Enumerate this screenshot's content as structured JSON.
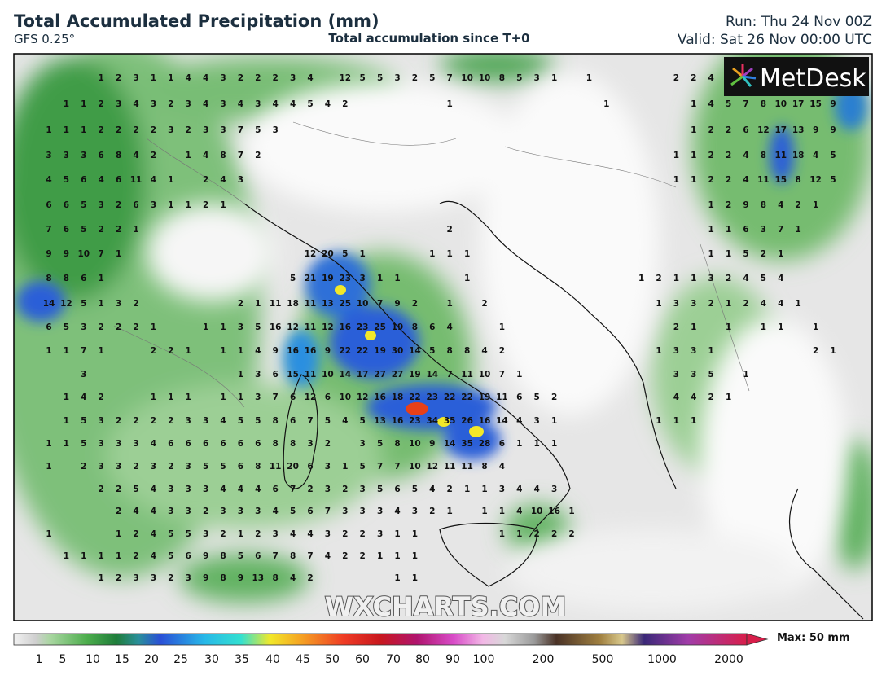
{
  "header": {
    "title": "Total Accumulated Precipitation (mm)",
    "model": "GFS 0.25°",
    "subtitle": "Total accumulation since T+0",
    "run": "Run: Thu 24 Nov 00Z",
    "valid": "Valid: Sat 26 Nov 00:00 UTC"
  },
  "logo": "MetDesk",
  "watermark": "WXCHARTS.COM",
  "grid": {
    "rows": [
      [
        null,
        null,
        null,
        1,
        2,
        3,
        1,
        1,
        4,
        4,
        3,
        2,
        2,
        2,
        3,
        4,
        null,
        12,
        5,
        5,
        3,
        2,
        5,
        7,
        10,
        10,
        8,
        5,
        3,
        1,
        null,
        1,
        null,
        null,
        null,
        null,
        2,
        2,
        4,
        null,
        null,
        null,
        null,
        null,
        null,
        null
      ],
      [
        null,
        1,
        1,
        2,
        3,
        4,
        3,
        2,
        3,
        4,
        3,
        4,
        3,
        4,
        4,
        5,
        4,
        2,
        null,
        null,
        null,
        null,
        null,
        1,
        null,
        null,
        null,
        null,
        null,
        null,
        null,
        null,
        1,
        null,
        null,
        null,
        null,
        1,
        4,
        5,
        7,
        8,
        10,
        17,
        15,
        9
      ],
      [
        1,
        1,
        1,
        2,
        2,
        2,
        2,
        3,
        2,
        3,
        3,
        7,
        5,
        3,
        null,
        null,
        null,
        null,
        null,
        null,
        null,
        null,
        null,
        null,
        null,
        null,
        null,
        null,
        null,
        null,
        null,
        null,
        null,
        null,
        null,
        null,
        null,
        1,
        2,
        2,
        6,
        12,
        17,
        13,
        9,
        9
      ],
      [
        3,
        3,
        3,
        6,
        8,
        4,
        2,
        null,
        1,
        4,
        8,
        7,
        2,
        null,
        null,
        null,
        null,
        null,
        null,
        null,
        null,
        null,
        null,
        null,
        null,
        null,
        null,
        null,
        null,
        null,
        null,
        null,
        null,
        null,
        null,
        null,
        1,
        1,
        2,
        2,
        4,
        8,
        11,
        18,
        4,
        5
      ],
      [
        4,
        5,
        6,
        4,
        6,
        11,
        4,
        1,
        null,
        2,
        4,
        3,
        null,
        null,
        null,
        null,
        null,
        null,
        null,
        null,
        null,
        null,
        null,
        null,
        null,
        null,
        null,
        null,
        null,
        null,
        null,
        null,
        null,
        null,
        null,
        null,
        1,
        1,
        2,
        2,
        4,
        11,
        15,
        8,
        12,
        5
      ],
      [
        6,
        6,
        5,
        3,
        2,
        6,
        3,
        1,
        1,
        2,
        1,
        null,
        null,
        null,
        null,
        null,
        null,
        null,
        null,
        null,
        null,
        null,
        null,
        null,
        null,
        null,
        null,
        null,
        null,
        null,
        null,
        null,
        null,
        null,
        null,
        null,
        null,
        null,
        1,
        2,
        9,
        8,
        4,
        2,
        1,
        null
      ],
      [
        7,
        6,
        5,
        2,
        2,
        1,
        null,
        null,
        null,
        null,
        null,
        null,
        null,
        null,
        null,
        null,
        null,
        null,
        null,
        null,
        null,
        null,
        null,
        2,
        null,
        null,
        null,
        null,
        null,
        null,
        null,
        null,
        null,
        null,
        null,
        null,
        null,
        null,
        1,
        1,
        6,
        3,
        7,
        1,
        null,
        null
      ],
      [
        9,
        9,
        10,
        7,
        1,
        null,
        null,
        null,
        null,
        null,
        null,
        null,
        null,
        null,
        null,
        12,
        20,
        5,
        1,
        null,
        null,
        null,
        1,
        1,
        1,
        null,
        null,
        null,
        null,
        null,
        null,
        null,
        null,
        null,
        null,
        null,
        null,
        null,
        1,
        1,
        5,
        2,
        1,
        null,
        null,
        null
      ],
      [
        8,
        8,
        6,
        1,
        null,
        null,
        null,
        null,
        null,
        null,
        null,
        null,
        null,
        null,
        5,
        21,
        19,
        23,
        3,
        1,
        1,
        null,
        null,
        null,
        1,
        null,
        null,
        null,
        null,
        null,
        null,
        null,
        null,
        null,
        1,
        2,
        1,
        1,
        3,
        2,
        4,
        5,
        4,
        null,
        null,
        null
      ],
      [
        14,
        12,
        5,
        1,
        3,
        2,
        null,
        null,
        null,
        null,
        null,
        2,
        1,
        11,
        18,
        11,
        13,
        25,
        10,
        7,
        9,
        2,
        null,
        1,
        null,
        2,
        null,
        null,
        null,
        null,
        null,
        null,
        null,
        null,
        null,
        1,
        3,
        3,
        2,
        1,
        2,
        4,
        4,
        1,
        null,
        null
      ],
      [
        6,
        5,
        3,
        2,
        2,
        2,
        1,
        null,
        null,
        1,
        1,
        3,
        5,
        16,
        12,
        11,
        12,
        16,
        23,
        25,
        19,
        8,
        6,
        4,
        null,
        null,
        1,
        null,
        null,
        null,
        null,
        null,
        null,
        null,
        null,
        null,
        2,
        1,
        null,
        1,
        null,
        1,
        1,
        null,
        1,
        null
      ],
      [
        1,
        1,
        7,
        1,
        null,
        null,
        2,
        2,
        1,
        null,
        1,
        1,
        4,
        9,
        16,
        16,
        9,
        22,
        22,
        19,
        30,
        14,
        5,
        8,
        8,
        4,
        2,
        null,
        null,
        null,
        null,
        null,
        null,
        null,
        null,
        1,
        3,
        3,
        1,
        null,
        null,
        null,
        null,
        null,
        2,
        1
      ],
      [
        null,
        null,
        3,
        null,
        null,
        null,
        null,
        null,
        null,
        null,
        null,
        1,
        3,
        6,
        15,
        11,
        10,
        14,
        17,
        27,
        27,
        19,
        14,
        7,
        11,
        10,
        7,
        1,
        null,
        null,
        null,
        null,
        null,
        null,
        null,
        null,
        3,
        3,
        5,
        null,
        1,
        null,
        null,
        null,
        null,
        null
      ],
      [
        null,
        1,
        4,
        2,
        null,
        null,
        1,
        1,
        1,
        null,
        1,
        1,
        3,
        7,
        6,
        12,
        6,
        10,
        12,
        16,
        18,
        22,
        23,
        22,
        22,
        19,
        11,
        6,
        5,
        2,
        null,
        null,
        null,
        null,
        null,
        null,
        4,
        4,
        2,
        1,
        null,
        null,
        null,
        null,
        null,
        null
      ],
      [
        null,
        1,
        5,
        3,
        2,
        2,
        2,
        2,
        3,
        3,
        4,
        5,
        5,
        8,
        6,
        7,
        5,
        4,
        5,
        13,
        16,
        23,
        34,
        35,
        26,
        16,
        14,
        4,
        3,
        1,
        null,
        null,
        null,
        null,
        null,
        1,
        1,
        1,
        null,
        null,
        null,
        null,
        null,
        null,
        null,
        null
      ],
      [
        1,
        1,
        5,
        3,
        3,
        3,
        4,
        6,
        6,
        6,
        6,
        6,
        6,
        8,
        8,
        3,
        2,
        null,
        3,
        5,
        8,
        10,
        9,
        14,
        35,
        28,
        6,
        1,
        1,
        1,
        null,
        null,
        null,
        null,
        null,
        null,
        null,
        null,
        null,
        null,
        null,
        null,
        null,
        null,
        null,
        null
      ],
      [
        1,
        null,
        2,
        3,
        3,
        2,
        3,
        2,
        3,
        5,
        5,
        6,
        8,
        11,
        20,
        6,
        3,
        1,
        5,
        7,
        7,
        10,
        12,
        11,
        11,
        8,
        4,
        null,
        null,
        null,
        null,
        null,
        null,
        null,
        null,
        null,
        null,
        null,
        null,
        null,
        null,
        null,
        null,
        null,
        null,
        null
      ],
      [
        null,
        null,
        null,
        2,
        2,
        5,
        4,
        3,
        3,
        3,
        4,
        4,
        4,
        6,
        7,
        2,
        3,
        2,
        3,
        5,
        6,
        5,
        4,
        2,
        1,
        1,
        3,
        4,
        4,
        3,
        null,
        null,
        null,
        null,
        null,
        null,
        null,
        null,
        null,
        null,
        null,
        null,
        null,
        null,
        null,
        null
      ],
      [
        null,
        null,
        null,
        null,
        2,
        4,
        4,
        3,
        3,
        2,
        3,
        3,
        3,
        4,
        5,
        6,
        7,
        3,
        3,
        3,
        4,
        3,
        2,
        1,
        null,
        1,
        1,
        4,
        10,
        16,
        1,
        null,
        null,
        null,
        null,
        null,
        null,
        null,
        null,
        null,
        null,
        null,
        null,
        null,
        null,
        null
      ],
      [
        1,
        null,
        null,
        null,
        1,
        2,
        4,
        5,
        5,
        3,
        2,
        1,
        2,
        3,
        4,
        4,
        3,
        2,
        2,
        3,
        1,
        1,
        null,
        null,
        null,
        null,
        1,
        1,
        2,
        2,
        2,
        null,
        null,
        null,
        null,
        null,
        null,
        null,
        null,
        null,
        null,
        null,
        null,
        null,
        null,
        null
      ],
      [
        null,
        1,
        1,
        1,
        1,
        2,
        4,
        5,
        6,
        9,
        8,
        5,
        6,
        7,
        8,
        7,
        4,
        2,
        2,
        1,
        1,
        1,
        null,
        null,
        null,
        null,
        null,
        null,
        null,
        null,
        null,
        null,
        null,
        null,
        null,
        null,
        null,
        null,
        null,
        null,
        null,
        null,
        null,
        null,
        null,
        null
      ],
      [
        null,
        null,
        null,
        1,
        2,
        3,
        3,
        2,
        3,
        9,
        8,
        9,
        13,
        8,
        4,
        2,
        null,
        null,
        null,
        null,
        1,
        1,
        null,
        null,
        null,
        null,
        null,
        null,
        null,
        null,
        null,
        null,
        null,
        null,
        null,
        null,
        null,
        null,
        null,
        null,
        null,
        null,
        null,
        null,
        null,
        null
      ]
    ]
  },
  "colorbar": {
    "labels": [
      1,
      5,
      10,
      15,
      20,
      25,
      30,
      35,
      40,
      45,
      50,
      60,
      70,
      80,
      90,
      100,
      200,
      500,
      1000,
      2000
    ],
    "max": "Max: 50 mm"
  }
}
